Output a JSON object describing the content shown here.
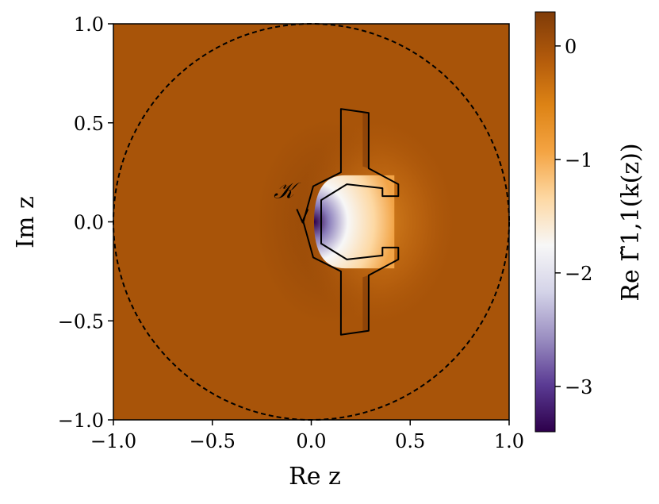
{
  "chart_data": {
    "type": "heatmap",
    "title": "",
    "xlabel": "Re z",
    "ylabel": "Im z",
    "xlim": [
      -1.0,
      1.0
    ],
    "ylim": [
      -1.0,
      1.0
    ],
    "xticks": [
      -1.0,
      -0.5,
      0.0,
      0.5,
      1.0
    ],
    "xtick_labels": [
      "−1.0",
      "−0.5",
      "0.0",
      "0.5",
      "1.0"
    ],
    "yticks": [
      -1.0,
      -0.5,
      0.0,
      0.5,
      1.0
    ],
    "ytick_labels": [
      "−1.0",
      "−0.5",
      "0.0",
      "0.5",
      "1.0"
    ],
    "grid": false,
    "colorbar": {
      "label": "Re Γ̃1,1(k(z))",
      "vmin": -3.4,
      "vmax": 0.3,
      "ticks": [
        0,
        -1,
        -2,
        -3
      ],
      "tick_labels": [
        "0",
        "−1",
        "−2",
        "−3"
      ],
      "colors": [
        "#2d004b",
        "#5a3a93",
        "#9a8ec1",
        "#d4d3e8",
        "#f7f7f7",
        "#fdd8a3",
        "#f4a443",
        "#dd8315",
        "#b25a0b",
        "#7f3b08"
      ]
    },
    "background_value": 0.0,
    "unit_circle": {
      "center": [
        0.0,
        0.0
      ],
      "radius": 1.0,
      "style": "dashed"
    },
    "contour_label": "𝒦",
    "contour_points": [
      [
        0.15,
        0.57
      ],
      [
        0.29,
        0.55
      ],
      [
        0.29,
        0.27
      ],
      [
        0.44,
        0.19
      ],
      [
        0.44,
        0.13
      ],
      [
        0.36,
        0.13
      ],
      [
        0.36,
        0.17
      ],
      [
        0.18,
        0.19
      ],
      [
        0.05,
        0.11
      ],
      [
        0.05,
        -0.11
      ],
      [
        0.18,
        -0.19
      ],
      [
        0.36,
        -0.17
      ],
      [
        0.36,
        -0.13
      ],
      [
        0.44,
        -0.13
      ],
      [
        0.44,
        -0.19
      ],
      [
        0.29,
        -0.27
      ],
      [
        0.29,
        -0.55
      ],
      [
        0.15,
        -0.57
      ],
      [
        0.15,
        -0.25
      ],
      [
        0.01,
        -0.18
      ],
      [
        -0.04,
        0.0
      ],
      [
        0.01,
        0.18
      ],
      [
        0.15,
        0.25
      ]
    ]
  }
}
